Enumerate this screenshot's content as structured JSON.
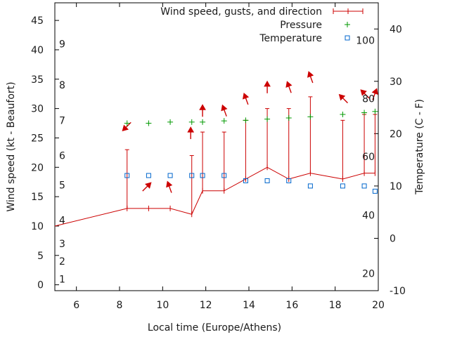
{
  "chart_data": {
    "type": "line",
    "x_label": "Local time (Europe/Athens)",
    "y_label_left": "Wind speed (kt - Beaufort)",
    "y_label_right": "Temperature (C - F)",
    "xlim": [
      5,
      20
    ],
    "ylim_left": [
      -1,
      48
    ],
    "ylim_right": [
      -10,
      45
    ],
    "x_ticks": [
      6,
      8,
      10,
      12,
      14,
      16,
      18,
      20
    ],
    "y_ticks_left": [
      0,
      5,
      10,
      15,
      20,
      25,
      30,
      35,
      40,
      45
    ],
    "y_ticks_right": [
      -10,
      0,
      10,
      20,
      30,
      40
    ],
    "beaufort_scale": [
      {
        "label": "1",
        "kt": 1
      },
      {
        "label": "2",
        "kt": 4
      },
      {
        "label": "3",
        "kt": 7
      },
      {
        "label": "4",
        "kt": 11
      },
      {
        "label": "5",
        "kt": 17
      },
      {
        "label": "6",
        "kt": 22
      },
      {
        "label": "7",
        "kt": 28
      },
      {
        "label": "8",
        "kt": 34
      },
      {
        "label": "9",
        "kt": 41
      }
    ],
    "fahrenheit_scale": [
      {
        "label": "20",
        "c": -6.7
      },
      {
        "label": "40",
        "c": 4.4
      },
      {
        "label": "60",
        "c": 15.6
      },
      {
        "label": "80",
        "c": 26.7
      },
      {
        "label": "100",
        "c": 37.8
      }
    ],
    "legend": {
      "wind": "Wind speed, gusts, and direction",
      "pressure": "Pressure",
      "temperature": "Temperature"
    },
    "legend_position": "top-right",
    "colors": {
      "wind": "#cc0000",
      "pressure": "#009900",
      "temperature": "#0066cc"
    },
    "wind_points": [
      {
        "x": 5.0,
        "speed": 10
      },
      {
        "x": 8.35,
        "speed": 13,
        "gust": 23
      },
      {
        "x": 9.35,
        "speed": 13
      },
      {
        "x": 10.35,
        "speed": 13
      },
      {
        "x": 11.35,
        "speed": 12,
        "gust": 22
      },
      {
        "x": 11.85,
        "speed": 16,
        "gust": 26
      },
      {
        "x": 12.85,
        "speed": 16,
        "gust": 26
      },
      {
        "x": 13.85,
        "speed": 18,
        "gust": 28
      },
      {
        "x": 14.85,
        "speed": 20,
        "gust": 30
      },
      {
        "x": 15.85,
        "speed": 18,
        "gust": 30
      },
      {
        "x": 16.85,
        "speed": 19,
        "gust": 32
      },
      {
        "x": 18.35,
        "speed": 18,
        "gust": 28
      },
      {
        "x": 19.35,
        "speed": 19,
        "gust": 29
      },
      {
        "x": 19.85,
        "speed": 19,
        "gust": 29
      }
    ],
    "direction_arrows": [
      {
        "x": 8.3,
        "y": 26.8,
        "angle": 45
      },
      {
        "x": 9.3,
        "y": 16.8,
        "angle": 225
      },
      {
        "x": 10.3,
        "y": 16.8,
        "angle": 160
      },
      {
        "x": 11.3,
        "y": 26.0,
        "angle": 180
      },
      {
        "x": 11.85,
        "y": 29.8,
        "angle": 180
      },
      {
        "x": 12.85,
        "y": 29.8,
        "angle": 160
      },
      {
        "x": 13.85,
        "y": 31.8,
        "angle": 160
      },
      {
        "x": 14.85,
        "y": 33.8,
        "angle": 180
      },
      {
        "x": 15.85,
        "y": 33.8,
        "angle": 160
      },
      {
        "x": 16.85,
        "y": 35.5,
        "angle": 160
      },
      {
        "x": 18.35,
        "y": 31.8,
        "angle": 135
      },
      {
        "x": 19.35,
        "y": 32.6,
        "angle": 135
      },
      {
        "x": 19.85,
        "y": 32.6,
        "angle": 200
      }
    ],
    "pressure_points": [
      {
        "x": 8.35,
        "y": 27.5
      },
      {
        "x": 9.35,
        "y": 27.5
      },
      {
        "x": 10.35,
        "y": 27.7
      },
      {
        "x": 11.35,
        "y": 27.7
      },
      {
        "x": 11.85,
        "y": 27.7
      },
      {
        "x": 12.85,
        "y": 27.9
      },
      {
        "x": 13.85,
        "y": 28.0
      },
      {
        "x": 14.85,
        "y": 28.2
      },
      {
        "x": 15.85,
        "y": 28.4
      },
      {
        "x": 16.85,
        "y": 28.6
      },
      {
        "x": 18.35,
        "y": 29.0
      },
      {
        "x": 19.35,
        "y": 29.3
      },
      {
        "x": 19.85,
        "y": 29.5
      }
    ],
    "temperature_points": [
      {
        "x": 8.35,
        "c": 12
      },
      {
        "x": 9.35,
        "c": 12
      },
      {
        "x": 10.35,
        "c": 12
      },
      {
        "x": 11.35,
        "c": 12
      },
      {
        "x": 11.85,
        "c": 12
      },
      {
        "x": 12.85,
        "c": 12
      },
      {
        "x": 13.85,
        "c": 11
      },
      {
        "x": 14.85,
        "c": 11
      },
      {
        "x": 15.85,
        "c": 11
      },
      {
        "x": 16.85,
        "c": 10
      },
      {
        "x": 18.35,
        "c": 10
      },
      {
        "x": 19.35,
        "c": 10
      },
      {
        "x": 19.85,
        "c": 9
      }
    ]
  }
}
